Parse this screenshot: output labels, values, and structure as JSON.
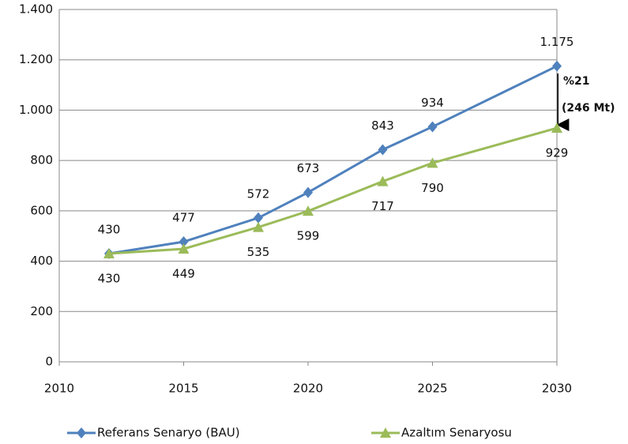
{
  "chart_data": {
    "type": "line",
    "x": [
      2012,
      2015,
      2018,
      2020,
      2023,
      2025,
      2030
    ],
    "series": [
      {
        "name": "Referans Senaryo (BAU)",
        "color": "#4f81bd",
        "marker": "diamond",
        "values": [
          430,
          477,
          572,
          673,
          843,
          934,
          1175
        ],
        "value_labels": [
          "430",
          "477",
          "572",
          "673",
          "843",
          "934",
          "1.175"
        ]
      },
      {
        "name": "Azaltım Senaryosu",
        "color": "#9bbb59",
        "marker": "triangle",
        "values": [
          430,
          449,
          535,
          599,
          717,
          790,
          929
        ]
      }
    ],
    "xlim": [
      2010,
      2030
    ],
    "xticks": [
      2010,
      2015,
      2020,
      2025,
      2030
    ],
    "ylim": [
      0,
      1400
    ],
    "yticks": [
      0,
      200,
      400,
      600,
      800,
      {
        "value": 1000,
        "label": "1.000"
      },
      {
        "value": 1200,
        "label": "1.200"
      },
      {
        "value": 1400,
        "label": "1.400"
      }
    ],
    "grid": true,
    "legend": "bottom",
    "annotations": [
      "%21",
      "(246 Mt)"
    ]
  }
}
